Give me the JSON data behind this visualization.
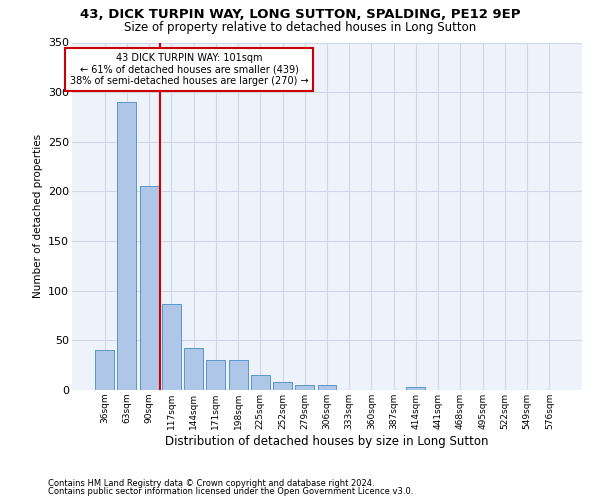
{
  "title1": "43, DICK TURPIN WAY, LONG SUTTON, SPALDING, PE12 9EP",
  "title2": "Size of property relative to detached houses in Long Sutton",
  "xlabel": "Distribution of detached houses by size in Long Sutton",
  "ylabel": "Number of detached properties",
  "footnote1": "Contains HM Land Registry data © Crown copyright and database right 2024.",
  "footnote2": "Contains public sector information licensed under the Open Government Licence v3.0.",
  "categories": [
    "36sqm",
    "63sqm",
    "90sqm",
    "117sqm",
    "144sqm",
    "171sqm",
    "198sqm",
    "225sqm",
    "252sqm",
    "279sqm",
    "306sqm",
    "333sqm",
    "360sqm",
    "387sqm",
    "414sqm",
    "441sqm",
    "468sqm",
    "495sqm",
    "522sqm",
    "549sqm",
    "576sqm"
  ],
  "values": [
    40,
    290,
    205,
    87,
    42,
    30,
    30,
    15,
    8,
    5,
    5,
    0,
    0,
    0,
    3,
    0,
    0,
    0,
    0,
    0,
    0
  ],
  "bar_color": "#aec6e8",
  "bar_edge_color": "#5a96c8",
  "grid_color": "#d0d8e8",
  "background_color": "#eef2fa",
  "red_line_x": 2.5,
  "annotation_text": "43 DICK TURPIN WAY: 101sqm\n← 61% of detached houses are smaller (439)\n38% of semi-detached houses are larger (270) →",
  "annotation_box_color": "#ffffff",
  "annotation_box_edge": "#cc0000",
  "red_line_color": "#cc0000",
  "ylim": [
    0,
    350
  ],
  "yticks": [
    0,
    50,
    100,
    150,
    200,
    250,
    300,
    350
  ]
}
